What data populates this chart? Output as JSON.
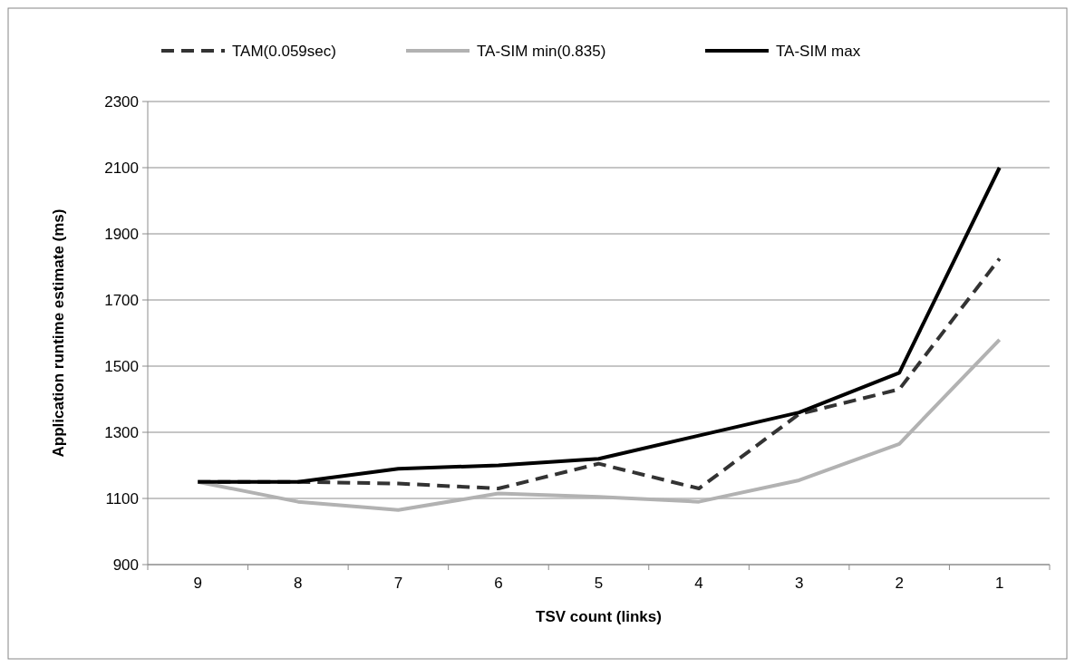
{
  "chart_data": {
    "type": "line",
    "xlabel": "TSV count (links)",
    "ylabel": "Application runtime estimate (ms)",
    "categories": [
      "9",
      "8",
      "7",
      "6",
      "5",
      "4",
      "3",
      "2",
      "1"
    ],
    "ylim": [
      900,
      2300
    ],
    "yticks": [
      900,
      1100,
      1300,
      1500,
      1700,
      1900,
      2100,
      2300
    ],
    "grid": "y",
    "legend": "top",
    "series": [
      {
        "name": "TAM(0.059sec)",
        "color": "#333333",
        "line_style": "dashed",
        "values": [
          1150,
          1150,
          1145,
          1130,
          1205,
          1130,
          1355,
          1430,
          1825
        ]
      },
      {
        "name": "TA-SIM min(0.835)",
        "color": "#b2b2b2",
        "values": [
          1150,
          1090,
          1065,
          1115,
          1105,
          1090,
          1155,
          1265,
          1580
        ]
      },
      {
        "name": "TA-SIM max",
        "color": "#000000",
        "values": [
          1150,
          1150,
          1190,
          1200,
          1220,
          1290,
          1360,
          1480,
          2100
        ]
      }
    ]
  }
}
